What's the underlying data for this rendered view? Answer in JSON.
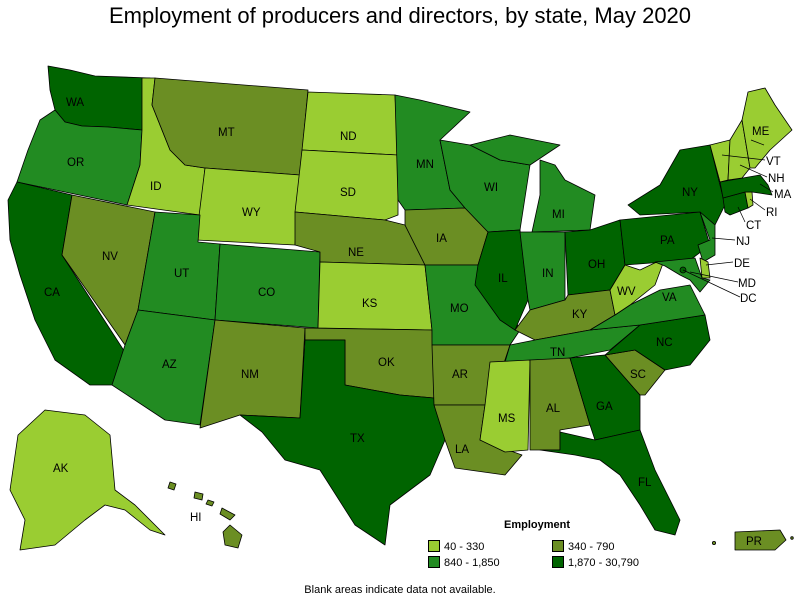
{
  "title": "Employment of producers and directors, by state, May 2020",
  "footnote": "Blank areas indicate data not available.",
  "colors": {
    "c1": "#9ACD32",
    "c2": "#6B8E23",
    "c3": "#228B22",
    "c4": "#006400"
  },
  "legend": {
    "title": "Employment",
    "items": [
      {
        "label": "40 - 330",
        "color": "#9ACD32"
      },
      {
        "label": "340 - 790",
        "color": "#6B8E23"
      },
      {
        "label": "840 - 1,850",
        "color": "#228B22"
      },
      {
        "label": "1,870 - 30,790",
        "color": "#006400"
      }
    ]
  },
  "states": {
    "WA": {
      "label": "WA",
      "class": 4
    },
    "OR": {
      "label": "OR",
      "class": 3
    },
    "CA": {
      "label": "CA",
      "class": 4
    },
    "ID": {
      "label": "ID",
      "class": 1
    },
    "NV": {
      "label": "NV",
      "class": 2
    },
    "MT": {
      "label": "MT",
      "class": 2
    },
    "WY": {
      "label": "WY",
      "class": 1
    },
    "UT": {
      "label": "UT",
      "class": 3
    },
    "AZ": {
      "label": "AZ",
      "class": 3
    },
    "CO": {
      "label": "CO",
      "class": 3
    },
    "NM": {
      "label": "NM",
      "class": 2
    },
    "ND": {
      "label": "ND",
      "class": 1
    },
    "SD": {
      "label": "SD",
      "class": 1
    },
    "NE": {
      "label": "NE",
      "class": 2
    },
    "KS": {
      "label": "KS",
      "class": 1
    },
    "OK": {
      "label": "OK",
      "class": 2
    },
    "TX": {
      "label": "TX",
      "class": 4
    },
    "MN": {
      "label": "MN",
      "class": 3
    },
    "IA": {
      "label": "IA",
      "class": 2
    },
    "MO": {
      "label": "MO",
      "class": 3
    },
    "AR": {
      "label": "AR",
      "class": 2
    },
    "LA": {
      "label": "LA",
      "class": 2
    },
    "WI": {
      "label": "WI",
      "class": 3
    },
    "IL": {
      "label": "IL",
      "class": 4
    },
    "MI": {
      "label": "MI",
      "class": 3
    },
    "IN": {
      "label": "IN",
      "class": 3
    },
    "OH": {
      "label": "OH",
      "class": 4
    },
    "KY": {
      "label": "KY",
      "class": 2
    },
    "TN": {
      "label": "TN",
      "class": 3
    },
    "MS": {
      "label": "MS",
      "class": 1
    },
    "AL": {
      "label": "AL",
      "class": 2
    },
    "GA": {
      "label": "GA",
      "class": 4
    },
    "FL": {
      "label": "FL",
      "class": 4
    },
    "SC": {
      "label": "SC",
      "class": 2
    },
    "NC": {
      "label": "NC",
      "class": 4
    },
    "VA": {
      "label": "VA",
      "class": 3
    },
    "WV": {
      "label": "WV",
      "class": 1
    },
    "PA": {
      "label": "PA",
      "class": 4
    },
    "NY": {
      "label": "NY",
      "class": 4
    },
    "NJ": {
      "label": "NJ",
      "class": 3
    },
    "DE": {
      "label": "DE",
      "class": 1
    },
    "MD": {
      "label": "MD",
      "class": 3
    },
    "DC": {
      "label": "DC",
      "class": 4
    },
    "CT": {
      "label": "CT",
      "class": 4
    },
    "RI": {
      "label": "RI",
      "class": 1
    },
    "MA": {
      "label": "MA",
      "class": 4
    },
    "VT": {
      "label": "VT",
      "class": 1
    },
    "NH": {
      "label": "NH",
      "class": 1
    },
    "ME": {
      "label": "ME",
      "class": 1
    },
    "AK": {
      "label": "AK",
      "class": 1
    },
    "HI": {
      "label": "HI",
      "class": 2
    },
    "PR": {
      "label": "PR",
      "class": 2
    }
  }
}
